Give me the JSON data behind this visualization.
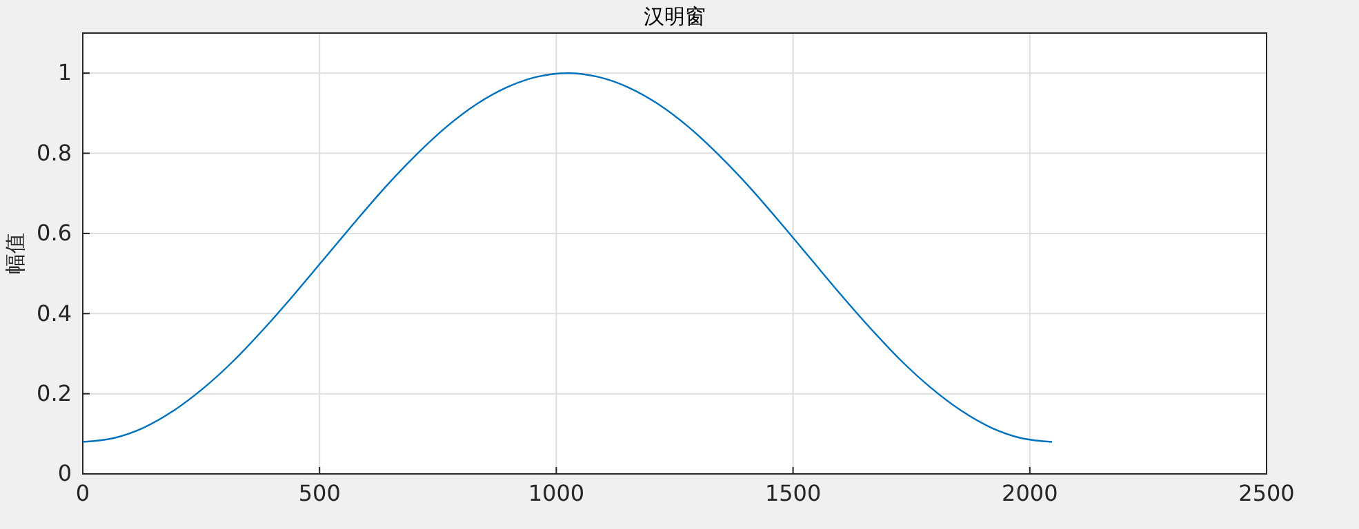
{
  "chart_data": {
    "type": "line",
    "title": "汉明窗",
    "ylabel": "幅值",
    "x": [
      0,
      64,
      128,
      192,
      256,
      320,
      384,
      448,
      512,
      576,
      640,
      704,
      768,
      832,
      896,
      960,
      1024,
      1087,
      1151,
      1215,
      1279,
      1343,
      1407,
      1471,
      1535,
      1599,
      1663,
      1727,
      1791,
      1855,
      1919,
      1983,
      2047
    ],
    "series": [
      {
        "color": "#0072bd",
        "values": [
          0.08,
          0.089,
          0.115,
          0.158,
          0.215,
          0.284,
          0.364,
          0.45,
          0.54,
          0.63,
          0.717,
          0.796,
          0.866,
          0.923,
          0.965,
          0.991,
          1.0,
          0.991,
          0.965,
          0.923,
          0.866,
          0.796,
          0.717,
          0.63,
          0.54,
          0.45,
          0.364,
          0.284,
          0.215,
          0.158,
          0.115,
          0.089,
          0.08
        ]
      }
    ],
    "xlim": [
      0,
      2500
    ],
    "xticks": [
      0,
      500,
      1000,
      1500,
      2000,
      2500
    ],
    "ylim": [
      0,
      1.1
    ],
    "yticks": [
      0,
      0.2,
      0.4,
      0.6,
      0.8,
      1
    ],
    "grid": true,
    "marker": "none",
    "line_style": "solid"
  }
}
